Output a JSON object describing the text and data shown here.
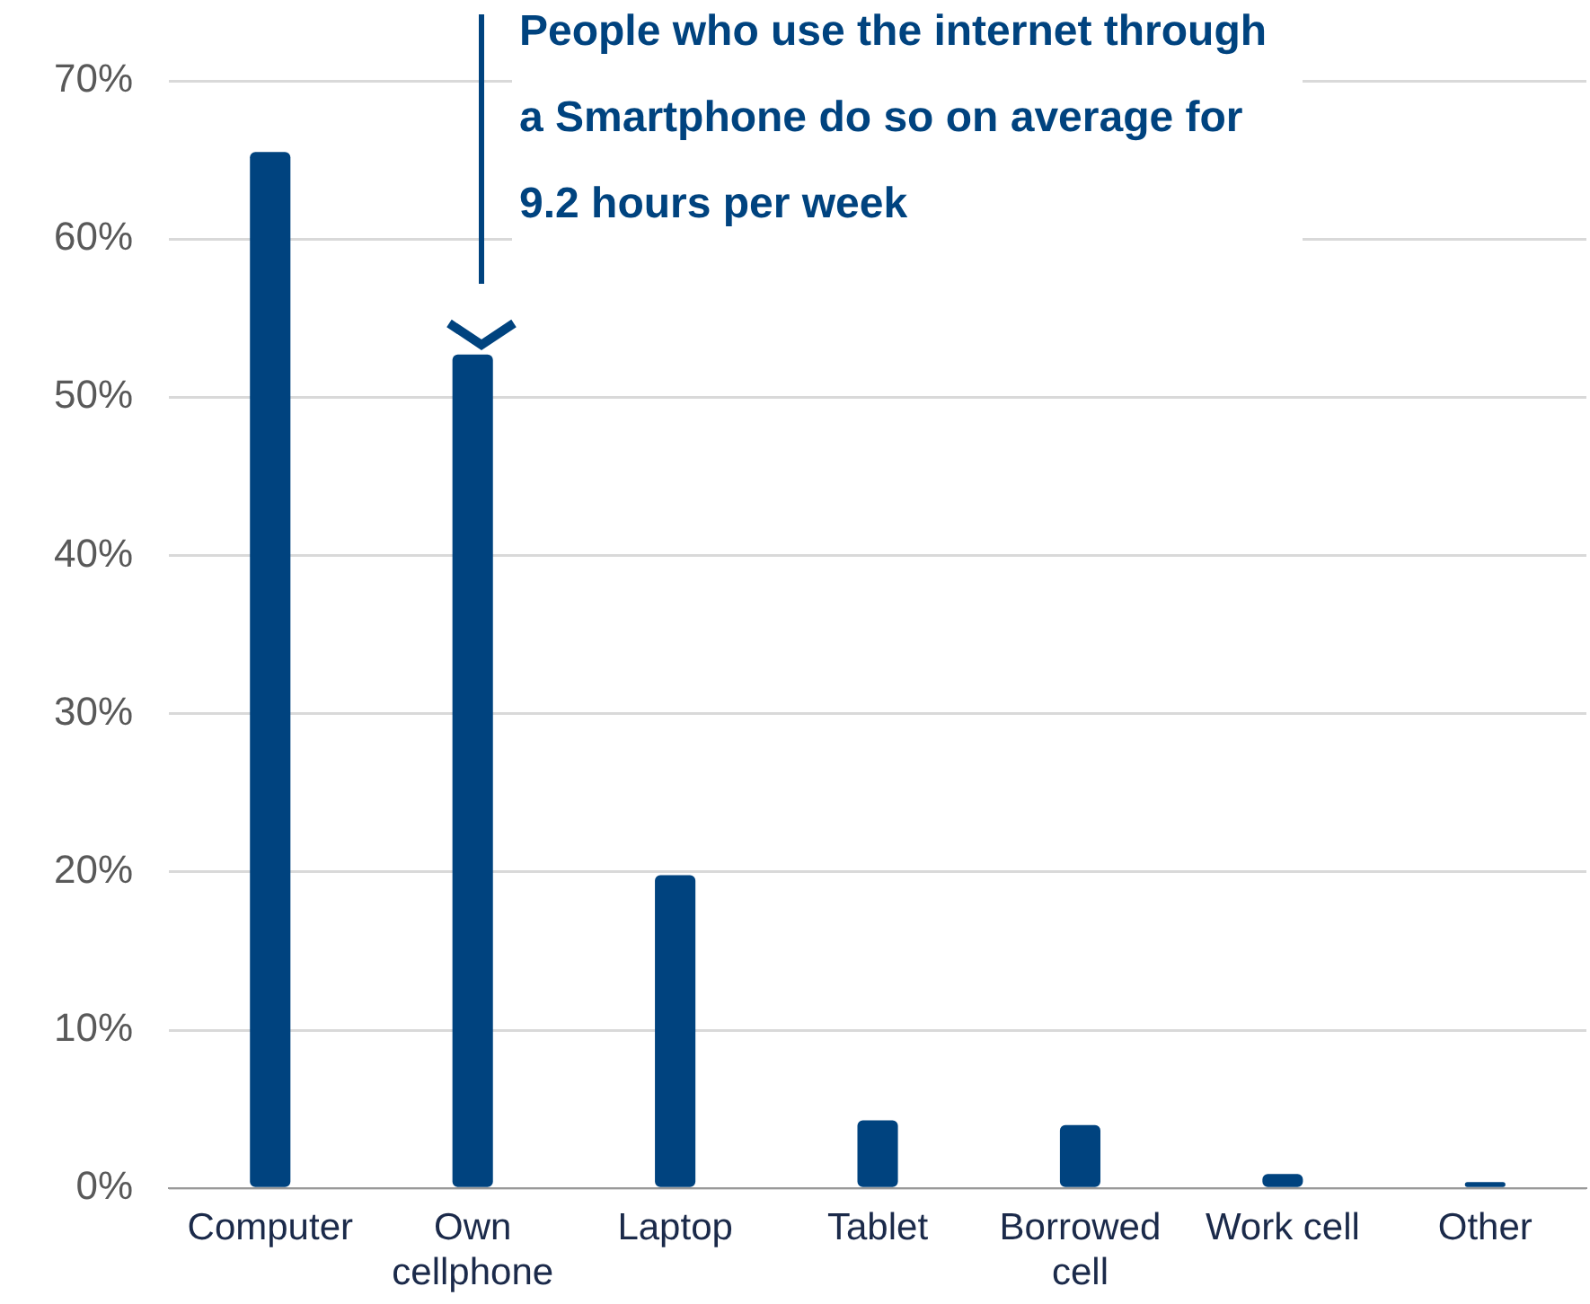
{
  "chart_data": {
    "type": "bar",
    "categories": [
      "Computer",
      "Own cellphone",
      "Laptop",
      "Tablet",
      "Borrowed cell",
      "Work cell",
      "Other"
    ],
    "values": [
      65.5,
      52.7,
      19.8,
      4.3,
      4.0,
      0.9,
      0.4
    ],
    "color": "#00437f",
    "ylim": [
      0,
      70
    ],
    "yticks": [
      {
        "value": 0,
        "label": "0%"
      },
      {
        "value": 10,
        "label": "10%"
      },
      {
        "value": 20,
        "label": "20%"
      },
      {
        "value": 30,
        "label": "30%"
      },
      {
        "value": 40,
        "label": "40%"
      },
      {
        "value": 50,
        "label": "50%"
      },
      {
        "value": 60,
        "label": "60%"
      },
      {
        "value": 70,
        "label": "70%"
      }
    ],
    "grid": "y",
    "legend": false,
    "annotations": [
      "People who use the internet through a Smartphone do so on average for 9.2 hours per week"
    ]
  }
}
